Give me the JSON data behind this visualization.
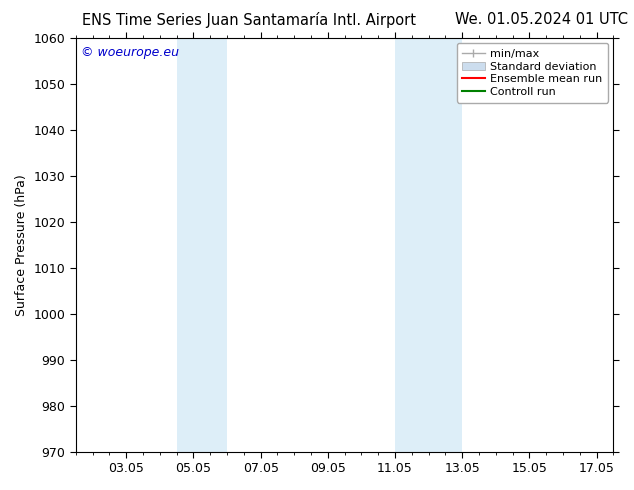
{
  "title_left": "ENS Time Series Juan Santamaría Intl. Airport",
  "title_right": "We. 01.05.2024 01 UTC",
  "ylabel": "Surface Pressure (hPa)",
  "ylim": [
    970,
    1060
  ],
  "yticks": [
    970,
    980,
    990,
    1000,
    1010,
    1020,
    1030,
    1040,
    1050,
    1060
  ],
  "xlabel": "",
  "xtick_labels": [
    "03.05",
    "05.05",
    "07.05",
    "09.05",
    "11.05",
    "13.05",
    "15.05",
    "17.05"
  ],
  "xtick_positions": [
    3,
    5,
    7,
    9,
    11,
    13,
    15,
    17
  ],
  "xlim": [
    1.5,
    17.5
  ],
  "shaded_bands": [
    {
      "x_start": 4.5,
      "x_end": 6.0,
      "color": "#ddeef8"
    },
    {
      "x_start": 11.0,
      "x_end": 13.0,
      "color": "#ddeef8"
    }
  ],
  "watermark_text": "© woeurope.eu",
  "watermark_color": "#0000cc",
  "legend_entries": [
    {
      "label": "min/max",
      "color": "#aaaaaa",
      "linewidth": 1.0,
      "linestyle": "-"
    },
    {
      "label": "Standard deviation",
      "color": "#ccddee",
      "linewidth": 6,
      "linestyle": "-"
    },
    {
      "label": "Ensemble mean run",
      "color": "#ff0000",
      "linewidth": 1.5,
      "linestyle": "-"
    },
    {
      "label": "Controll run",
      "color": "#008000",
      "linewidth": 1.5,
      "linestyle": "-"
    }
  ],
  "background_color": "#ffffff",
  "plot_bg_color": "#ffffff",
  "title_fontsize": 10.5,
  "axis_label_fontsize": 9,
  "tick_fontsize": 9,
  "watermark_fontsize": 9,
  "legend_fontsize": 8
}
